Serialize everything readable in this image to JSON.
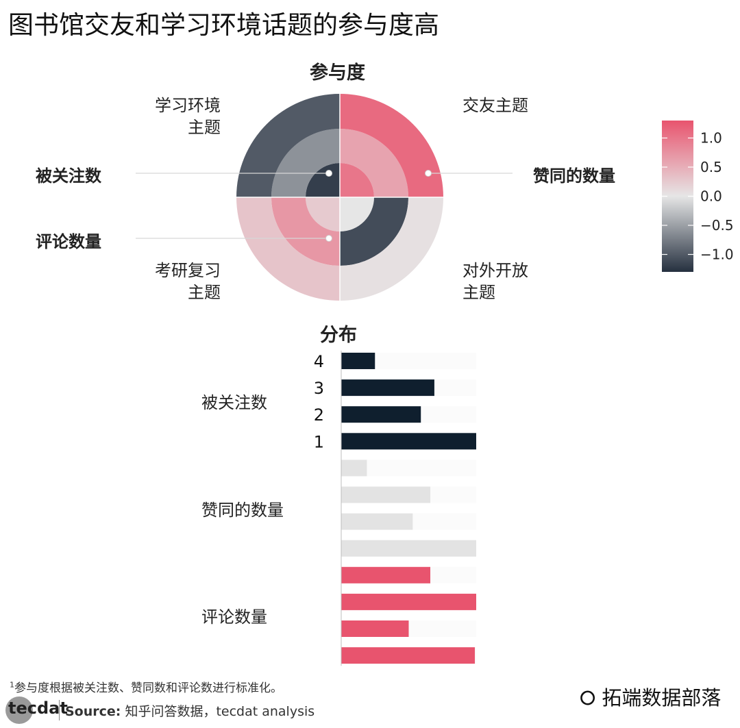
{
  "title": "图书馆交友和学习环境话题的参与度高",
  "polar_section_label": "参与度",
  "bar_section_label": "分布",
  "quadrant_labels": {
    "top_left_line1": "学习环境",
    "top_left_line2": "主题",
    "top_right": "交友主题",
    "bottom_left_line1": "考研复习",
    "bottom_left_line2": "主题",
    "bottom_right_line1": "对外开放",
    "bottom_right_line2": "主题"
  },
  "metric_labels": {
    "follow": "被关注数",
    "likes": "赞同的数量",
    "comments": "评论数量"
  },
  "footnote_marker": "1",
  "footnote": "参与度根据被关注数、赞同数和评论数进行标准化。",
  "logo": "tecdat",
  "source_label": "Source:",
  "source_text": "知乎问答数据，tecdat analysis",
  "watermark": "拓端数据部落",
  "colors": {
    "high": "#e8546e",
    "mid": "#e6e6e6",
    "low": "#25303f"
  },
  "chart_data": [
    {
      "type": "heatmap",
      "subtype": "polar",
      "title": "参与度",
      "themes": [
        "交友主题",
        "学习环境主题",
        "考研复习主题",
        "对外开放主题"
      ],
      "rings": [
        "被关注数",
        "评论数量",
        "赞同的数量"
      ],
      "values": {
        "交友主题": {
          "被关注数": 1.0,
          "评论数量": 0.6,
          "赞同的数量": 1.1
        },
        "学习环境主题": {
          "被关注数": -1.2,
          "评论数量": -0.6,
          "赞同的数量": -1.0
        },
        "考研复习主题": {
          "被关注数": 0.25,
          "评论数量": 0.7,
          "赞同的数量": 0.3
        },
        "对外开放主题": {
          "被关注数": 0.0,
          "评论数量": -1.1,
          "赞同的数量": 0.05
        }
      },
      "colorbar": {
        "ticks": [
          "1.0",
          "0.5",
          "0.0",
          "−0.5",
          "−1.0"
        ],
        "range": [
          -1.3,
          1.3
        ]
      }
    },
    {
      "type": "bar",
      "orientation": "horizontal",
      "title": "分布",
      "category_labels": [
        "4",
        "3",
        "2",
        "1"
      ],
      "groups": [
        {
          "name": "被关注数",
          "values": [
            0.25,
            0.69,
            0.59,
            1.0
          ],
          "color": "#0f1f2e"
        },
        {
          "name": "赞同的数量",
          "values": [
            0.19,
            0.66,
            0.53,
            1.0
          ],
          "color": "#e3e3e3"
        },
        {
          "name": "评论数量",
          "values": [
            0.66,
            1.0,
            0.5,
            0.99
          ],
          "color": "#e8546e"
        }
      ]
    }
  ]
}
